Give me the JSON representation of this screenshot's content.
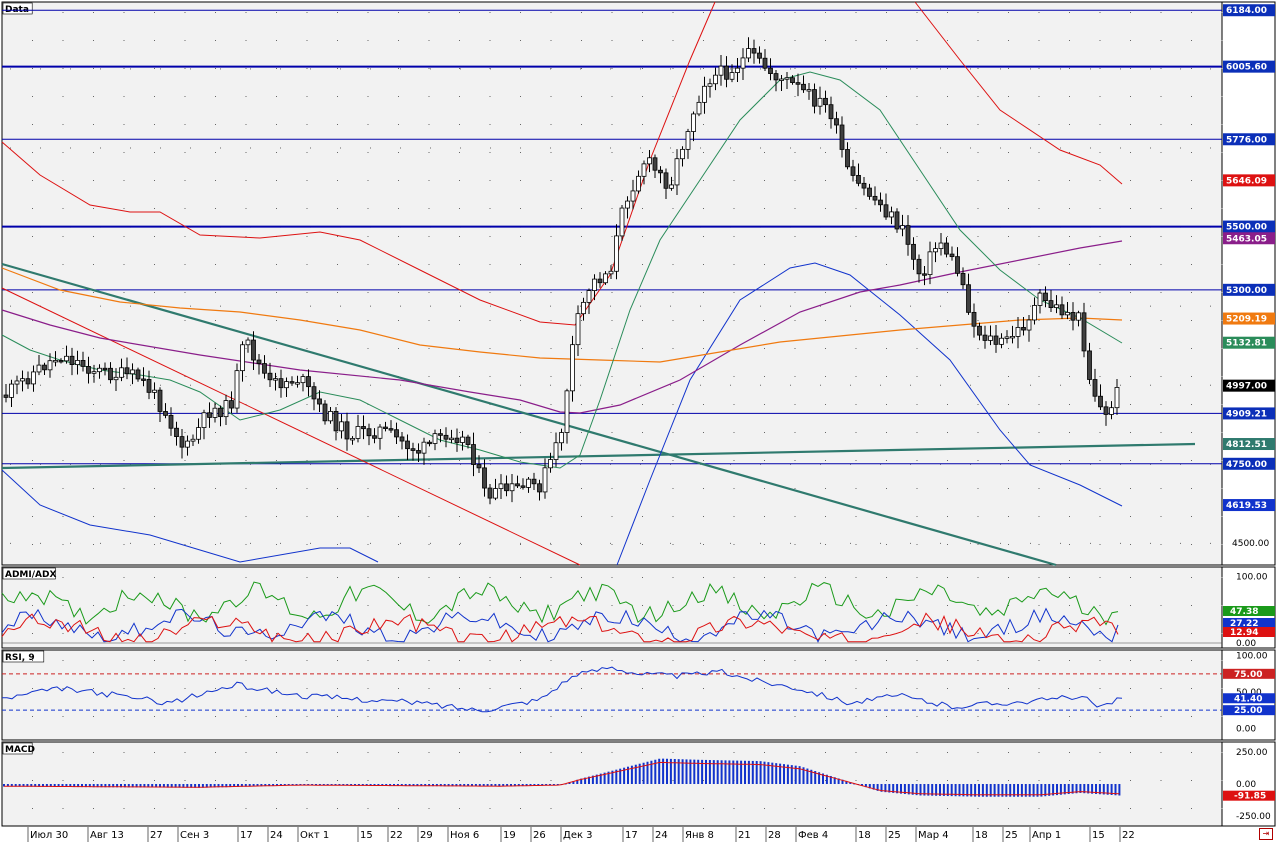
{
  "panels": {
    "main_title": "Data",
    "admi_title": "ADMI/ADX",
    "rsi_title": "RSI, 9",
    "macd_title": "MACD"
  },
  "colors": {
    "background": "#f2f2f2",
    "candle_up": "#ffffff",
    "candle_down": "#404040",
    "support_lines": "#0000aa",
    "trendline": "#2f7a6e",
    "envelope_red": "#dd1111",
    "envelope_blue": "#1133cc",
    "ma_green": "#2a8c5a",
    "ma_purple": "#8a1e8a",
    "ma_orange": "#f07a10"
  },
  "chart_data": [
    {
      "type": "candlestick",
      "panel": "Data",
      "x_tick_labels": [
        "Июл 30",
        "Авг 13",
        "27",
        "Сен 3",
        "17",
        "24",
        "Окт 1",
        "15",
        "22",
        "29",
        "Ноя 6",
        "19",
        "26",
        "Дек 3",
        "17",
        "24",
        "Янв 8",
        "21",
        "28",
        "Фев 4",
        "18",
        "25",
        "Мар 4",
        "18",
        "25",
        "Апр 1",
        "15",
        "22"
      ],
      "y_tick_labels": [
        "4500.00"
      ],
      "ylim": [
        4430,
        6210
      ],
      "horizontal_levels": [
        {
          "value": 6184.0,
          "label": "6184.00"
        },
        {
          "value": 6005.6,
          "label": "6005.60"
        },
        {
          "value": 5776.0,
          "label": "5776.00"
        },
        {
          "value": 5500.0,
          "label": "5500.00"
        },
        {
          "value": 5300.0,
          "label": "5300.00"
        },
        {
          "value": 4909.21,
          "label": "4909.21"
        },
        {
          "value": 4750.0,
          "label": "4750.00"
        }
      ],
      "price_tags": [
        {
          "value": 5646.09,
          "label": "5646.09",
          "color": "#dd1111"
        },
        {
          "value": 5463.05,
          "label": "5463.05",
          "color": "#8a1e8a"
        },
        {
          "value": 5209.19,
          "label": "5209.19",
          "color": "#f07a10"
        },
        {
          "value": 5132.81,
          "label": "5132.81",
          "color": "#2a8c5a"
        },
        {
          "value": 4997.0,
          "label": "4997.00",
          "color": "#000000"
        },
        {
          "value": 4812.51,
          "label": "4812.51",
          "color": "#2f7a6e"
        },
        {
          "value": 4619.53,
          "label": "4619.53",
          "color": "#1133cc"
        }
      ]
    },
    {
      "type": "line",
      "panel": "ADMI/ADX",
      "y_tick_labels": [
        "100.00",
        "0.00"
      ],
      "ylim": [
        0,
        110
      ],
      "series": [
        {
          "color": "#1a9a1a",
          "last": 47.38,
          "last_label": "47.38"
        },
        {
          "color": "#1133cc",
          "last": 27.22,
          "last_label": "27.22"
        },
        {
          "color": "#dd1111",
          "last": 12.94,
          "last_label": "12.94"
        }
      ]
    },
    {
      "type": "line",
      "panel": "RSI, 9",
      "y_tick_labels": [
        "100.00",
        "50.00",
        "0.00"
      ],
      "ylim": [
        -5,
        105
      ],
      "levels": [
        {
          "value": 75,
          "label": "75.00",
          "color": "#cc2222"
        },
        {
          "value": 25,
          "label": "25.00",
          "color": "#1133cc"
        }
      ],
      "series": [
        {
          "color": "#1133cc",
          "last": 41.4,
          "last_label": "41.40"
        }
      ]
    },
    {
      "type": "bar",
      "panel": "MACD",
      "y_tick_labels": [
        "250.00",
        "0.00",
        "-250.00"
      ],
      "ylim": [
        -330,
        330
      ],
      "signal_color": "#dd1111",
      "bar_color": "#1133cc",
      "last": -91.85,
      "last_label": "-91.85"
    }
  ]
}
